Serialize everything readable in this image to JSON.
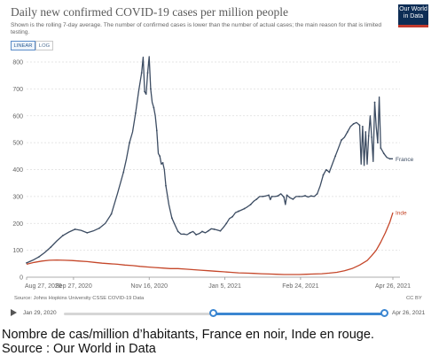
{
  "header": {
    "title": "Daily new confirmed COVID-19 cases per million people",
    "subtitle": "Shown is the rolling 7-day average. The number of confirmed cases is lower than the number of actual cases; the main reason for that is limited testing.",
    "logo_text": "Our World in Data"
  },
  "controls": {
    "linear_label": "LINEAR",
    "log_label": "LOG",
    "active": "LINEAR"
  },
  "chart_data": {
    "type": "line",
    "title": "Daily new confirmed COVID-19 cases per million people",
    "ylim": [
      0,
      800
    ],
    "y_ticks": [
      "0",
      "100",
      "200",
      "300",
      "400",
      "500",
      "600",
      "700",
      "800"
    ],
    "x_tick_labels": [
      "Aug 27, 2020",
      "Sep 27, 2020",
      "Nov 16, 2020",
      "Jan 5, 2021",
      "Feb 24, 2021",
      "Apr 26, 2021"
    ],
    "x_ticks_days": [
      0,
      31,
      81,
      131,
      181,
      242
    ],
    "x_range_days": [
      0,
      242
    ],
    "grid": true,
    "legend": "inline labels at line ends",
    "series": [
      {
        "name": "France",
        "color": "#3d4d63",
        "points": [
          [
            0,
            53
          ],
          [
            4,
            63
          ],
          [
            8,
            75
          ],
          [
            12,
            92
          ],
          [
            16,
            112
          ],
          [
            20,
            135
          ],
          [
            24,
            155
          ],
          [
            28,
            168
          ],
          [
            32,
            178
          ],
          [
            36,
            174
          ],
          [
            40,
            165
          ],
          [
            44,
            172
          ],
          [
            48,
            182
          ],
          [
            52,
            200
          ],
          [
            56,
            235
          ],
          [
            60,
            310
          ],
          [
            64,
            390
          ],
          [
            66,
            440
          ],
          [
            68,
            500
          ],
          [
            70,
            540
          ],
          [
            72,
            610
          ],
          [
            74,
            690
          ],
          [
            76,
            760
          ],
          [
            77,
            818
          ],
          [
            78,
            690
          ],
          [
            79,
            680
          ],
          [
            80,
            760
          ],
          [
            81,
            820
          ],
          [
            82,
            700
          ],
          [
            83,
            650
          ],
          [
            84,
            630
          ],
          [
            85,
            600
          ],
          [
            86,
            545
          ],
          [
            87,
            460
          ],
          [
            88,
            450
          ],
          [
            89,
            420
          ],
          [
            90,
            425
          ],
          [
            91,
            400
          ],
          [
            92,
            340
          ],
          [
            94,
            270
          ],
          [
            96,
            220
          ],
          [
            98,
            195
          ],
          [
            100,
            170
          ],
          [
            102,
            160
          ],
          [
            104,
            160
          ],
          [
            106,
            158
          ],
          [
            108,
            165
          ],
          [
            110,
            170
          ],
          [
            112,
            158
          ],
          [
            114,
            162
          ],
          [
            116,
            170
          ],
          [
            118,
            165
          ],
          [
            120,
            172
          ],
          [
            122,
            180
          ],
          [
            124,
            178
          ],
          [
            126,
            175
          ],
          [
            128,
            172
          ],
          [
            130,
            185
          ],
          [
            132,
            200
          ],
          [
            134,
            218
          ],
          [
            136,
            225
          ],
          [
            138,
            240
          ],
          [
            140,
            245
          ],
          [
            142,
            250
          ],
          [
            144,
            255
          ],
          [
            146,
            262
          ],
          [
            148,
            270
          ],
          [
            150,
            282
          ],
          [
            152,
            290
          ],
          [
            154,
            300
          ],
          [
            156,
            300
          ],
          [
            158,
            302
          ],
          [
            160,
            305
          ],
          [
            161,
            288
          ],
          [
            162,
            300
          ],
          [
            164,
            300
          ],
          [
            166,
            302
          ],
          [
            168,
            310
          ],
          [
            170,
            298
          ],
          [
            171,
            270
          ],
          [
            172,
            305
          ],
          [
            174,
            295
          ],
          [
            176,
            290
          ],
          [
            178,
            300
          ],
          [
            180,
            300
          ],
          [
            182,
            300
          ],
          [
            184,
            303
          ],
          [
            186,
            298
          ],
          [
            188,
            302
          ],
          [
            190,
            300
          ],
          [
            192,
            310
          ],
          [
            194,
            340
          ],
          [
            196,
            380
          ],
          [
            198,
            400
          ],
          [
            200,
            390
          ],
          [
            202,
            420
          ],
          [
            204,
            450
          ],
          [
            206,
            480
          ],
          [
            208,
            510
          ],
          [
            210,
            520
          ],
          [
            212,
            540
          ],
          [
            214,
            560
          ],
          [
            216,
            570
          ],
          [
            218,
            575
          ],
          [
            220,
            565
          ],
          [
            221,
            420
          ],
          [
            222,
            560
          ],
          [
            223,
            415
          ],
          [
            224,
            540
          ],
          [
            225,
            420
          ],
          [
            226,
            525
          ],
          [
            227,
            600
          ],
          [
            228,
            520
          ],
          [
            229,
            430
          ],
          [
            230,
            650
          ],
          [
            231,
            560
          ],
          [
            232,
            500
          ],
          [
            233,
            670
          ],
          [
            234,
            480
          ],
          [
            235,
            470
          ],
          [
            236,
            460
          ],
          [
            238,
            445
          ],
          [
            240,
            440
          ],
          [
            242,
            440
          ]
        ]
      },
      {
        "name": "Inde",
        "color": "#c5472a",
        "points": [
          [
            0,
            48
          ],
          [
            5,
            55
          ],
          [
            10,
            60
          ],
          [
            15,
            63
          ],
          [
            20,
            64
          ],
          [
            25,
            63
          ],
          [
            30,
            62
          ],
          [
            35,
            60
          ],
          [
            40,
            58
          ],
          [
            45,
            55
          ],
          [
            50,
            52
          ],
          [
            55,
            50
          ],
          [
            60,
            48
          ],
          [
            65,
            45
          ],
          [
            70,
            43
          ],
          [
            75,
            40
          ],
          [
            80,
            38
          ],
          [
            85,
            36
          ],
          [
            90,
            34
          ],
          [
            95,
            32
          ],
          [
            100,
            32
          ],
          [
            105,
            30
          ],
          [
            110,
            28
          ],
          [
            115,
            26
          ],
          [
            120,
            24
          ],
          [
            125,
            22
          ],
          [
            130,
            20
          ],
          [
            135,
            18
          ],
          [
            140,
            16
          ],
          [
            145,
            15
          ],
          [
            150,
            14
          ],
          [
            155,
            13
          ],
          [
            160,
            12
          ],
          [
            165,
            11
          ],
          [
            170,
            10
          ],
          [
            175,
            10
          ],
          [
            180,
            10
          ],
          [
            185,
            11
          ],
          [
            190,
            12
          ],
          [
            195,
            13
          ],
          [
            200,
            15
          ],
          [
            205,
            18
          ],
          [
            210,
            24
          ],
          [
            215,
            32
          ],
          [
            220,
            45
          ],
          [
            225,
            62
          ],
          [
            228,
            80
          ],
          [
            231,
            100
          ],
          [
            234,
            130
          ],
          [
            237,
            165
          ],
          [
            240,
            205
          ],
          [
            242,
            240
          ]
        ]
      }
    ]
  },
  "footer": {
    "source": "Source: Johns Hopkins University CSSE COVID-19 Data",
    "license": "CC BY",
    "timeline_start": "Jan 29, 2020",
    "timeline_end": "Apr 26, 2021"
  },
  "caption": {
    "line1": "Nombre de cas/million d’habitants, France en noir, Inde en rouge.",
    "line2": "Source : Our World in Data"
  }
}
